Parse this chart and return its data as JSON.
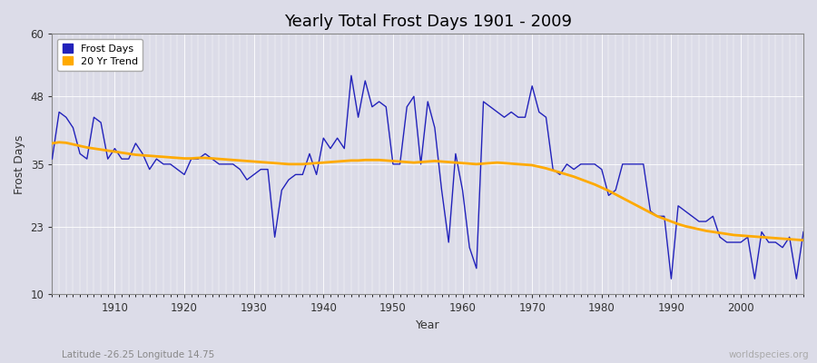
{
  "title": "Yearly Total Frost Days 1901 - 2009",
  "ylabel": "Frost Days",
  "xlabel": "Year",
  "subtitle": "Latitude -26.25 Longitude 14.75",
  "watermark": "worldspecies.org",
  "ylim": [
    10,
    60
  ],
  "yticks": [
    10,
    23,
    35,
    48,
    60
  ],
  "xlim": [
    1901,
    2009
  ],
  "xticks": [
    1910,
    1920,
    1930,
    1940,
    1950,
    1960,
    1970,
    1980,
    1990,
    2000
  ],
  "background_color": "#dcdce8",
  "plot_bg_color": "#dcdce8",
  "frost_color": "#2222bb",
  "trend_color": "#ffaa00",
  "legend_frost": "Frost Days",
  "legend_trend": "20 Yr Trend",
  "years": [
    1901,
    1902,
    1903,
    1904,
    1905,
    1906,
    1907,
    1908,
    1909,
    1910,
    1911,
    1912,
    1913,
    1914,
    1915,
    1916,
    1917,
    1918,
    1919,
    1920,
    1921,
    1922,
    1923,
    1924,
    1925,
    1926,
    1927,
    1928,
    1929,
    1930,
    1931,
    1932,
    1933,
    1934,
    1935,
    1936,
    1937,
    1938,
    1939,
    1940,
    1941,
    1942,
    1943,
    1944,
    1945,
    1946,
    1947,
    1948,
    1949,
    1950,
    1951,
    1952,
    1953,
    1954,
    1955,
    1956,
    1957,
    1958,
    1959,
    1960,
    1961,
    1962,
    1963,
    1964,
    1965,
    1966,
    1967,
    1968,
    1969,
    1970,
    1971,
    1972,
    1973,
    1974,
    1975,
    1976,
    1977,
    1978,
    1979,
    1980,
    1981,
    1982,
    1983,
    1984,
    1985,
    1986,
    1987,
    1988,
    1989,
    1990,
    1991,
    1992,
    1993,
    1994,
    1995,
    1996,
    1997,
    1998,
    1999,
    2000,
    2001,
    2002,
    2003,
    2004,
    2005,
    2006,
    2007,
    2008,
    2009
  ],
  "frost_days": [
    36,
    45,
    44,
    42,
    37,
    36,
    44,
    43,
    36,
    38,
    36,
    36,
    39,
    37,
    34,
    36,
    35,
    35,
    34,
    33,
    36,
    36,
    37,
    36,
    35,
    35,
    35,
    34,
    32,
    33,
    34,
    34,
    21,
    30,
    32,
    33,
    33,
    37,
    33,
    40,
    38,
    40,
    38,
    52,
    44,
    51,
    46,
    47,
    46,
    35,
    35,
    46,
    48,
    35,
    47,
    42,
    30,
    20,
    37,
    30,
    19,
    15,
    47,
    46,
    45,
    44,
    45,
    44,
    44,
    50,
    45,
    44,
    34,
    33,
    35,
    34,
    35,
    35,
    35,
    34,
    29,
    30,
    35,
    35,
    35,
    35,
    26,
    25,
    25,
    13,
    27,
    26,
    25,
    24,
    24,
    25,
    21,
    20,
    20,
    20,
    21,
    13,
    22,
    20,
    20,
    19,
    21,
    13,
    22
  ],
  "trend_years": [
    1901,
    1902,
    1903,
    1904,
    1905,
    1906,
    1907,
    1908,
    1909,
    1910,
    1911,
    1912,
    1913,
    1914,
    1915,
    1916,
    1917,
    1918,
    1919,
    1920,
    1921,
    1922,
    1923,
    1924,
    1925,
    1926,
    1927,
    1928,
    1929,
    1930,
    1931,
    1932,
    1933,
    1934,
    1935,
    1936,
    1937,
    1938,
    1939,
    1940,
    1941,
    1942,
    1943,
    1944,
    1945,
    1946,
    1947,
    1948,
    1949,
    1950,
    1951,
    1952,
    1953,
    1954,
    1955,
    1956,
    1957,
    1958,
    1959,
    1960,
    1961,
    1962,
    1963,
    1964,
    1965,
    1966,
    1967,
    1968,
    1969,
    1970,
    1971,
    1972,
    1973,
    1974,
    1975,
    1976,
    1977,
    1978,
    1979,
    1980,
    1981,
    1982,
    1983,
    1984,
    1985,
    1986,
    1987,
    1988,
    1989,
    1990,
    1991,
    1992,
    1993,
    1994,
    1995,
    1996,
    1997,
    1998,
    1999,
    2000,
    2001,
    2002,
    2003,
    2004,
    2005,
    2006,
    2007,
    2008,
    2009
  ],
  "trend_values": [
    39.0,
    39.2,
    39.1,
    38.8,
    38.5,
    38.2,
    38.0,
    37.8,
    37.6,
    37.4,
    37.2,
    37.0,
    36.8,
    36.7,
    36.6,
    36.5,
    36.4,
    36.3,
    36.2,
    36.1,
    36.1,
    36.2,
    36.2,
    36.1,
    36.0,
    35.9,
    35.8,
    35.7,
    35.6,
    35.5,
    35.4,
    35.3,
    35.2,
    35.1,
    35.0,
    35.0,
    35.0,
    35.1,
    35.2,
    35.3,
    35.4,
    35.5,
    35.6,
    35.7,
    35.7,
    35.8,
    35.8,
    35.8,
    35.7,
    35.6,
    35.5,
    35.4,
    35.3,
    35.4,
    35.5,
    35.6,
    35.5,
    35.4,
    35.3,
    35.2,
    35.1,
    35.0,
    35.1,
    35.2,
    35.3,
    35.2,
    35.1,
    35.0,
    34.9,
    34.8,
    34.5,
    34.2,
    33.8,
    33.4,
    33.0,
    32.6,
    32.1,
    31.6,
    31.1,
    30.5,
    29.9,
    29.2,
    28.5,
    27.8,
    27.1,
    26.4,
    25.7,
    25.0,
    24.5,
    24.0,
    23.5,
    23.1,
    22.8,
    22.5,
    22.2,
    22.0,
    21.8,
    21.6,
    21.4,
    21.3,
    21.2,
    21.1,
    21.0,
    20.9,
    20.8,
    20.7,
    20.6,
    20.5,
    20.4
  ]
}
